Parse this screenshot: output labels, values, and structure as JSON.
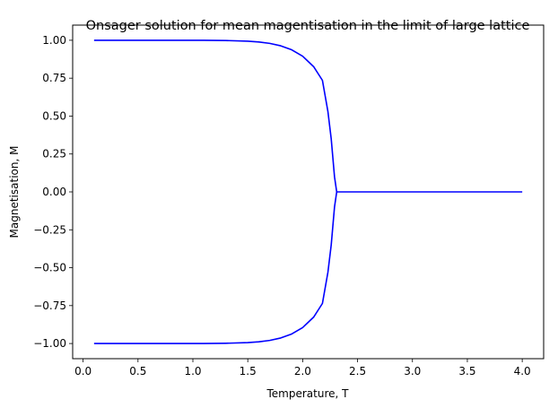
{
  "chart_data": {
    "type": "line",
    "title": "Onsager solution for mean magentisation in the limit of large lattice",
    "xlabel": "Temperature, T",
    "ylabel": "Magnetisation, M",
    "xlim": [
      -0.095,
      4.195
    ],
    "ylim": [
      -1.1,
      1.1
    ],
    "x_ticks": [
      "0.0",
      "0.5",
      "1.0",
      "1.5",
      "2.0",
      "2.5",
      "3.0",
      "3.5",
      "4.0"
    ],
    "x_tick_values": [
      0.0,
      0.5,
      1.0,
      1.5,
      2.0,
      2.5,
      3.0,
      3.5,
      4.0
    ],
    "y_ticks": [
      "1.00",
      "0.75",
      "0.50",
      "0.25",
      "0.00",
      "−0.25",
      "−0.50",
      "−0.75",
      "−1.00"
    ],
    "y_tick_values": [
      1.0,
      0.75,
      0.5,
      0.25,
      0.0,
      -0.25,
      -0.5,
      -0.75,
      -1.0
    ],
    "grid": false,
    "line_color": "#0000ff",
    "series": [
      {
        "x": [
          0.1,
          0.5,
          0.9,
          1.1,
          1.3,
          1.5,
          1.6,
          1.7,
          1.8,
          1.9,
          2.0,
          2.1,
          2.18,
          2.23,
          2.26,
          2.29,
          2.31,
          4.0
        ],
        "y": [
          1.0,
          1.0,
          0.9999,
          0.9996,
          0.9984,
          0.9941,
          0.9889,
          0.9795,
          0.9635,
          0.9373,
          0.8951,
          0.8258,
          0.7356,
          0.53,
          0.35,
          0.1,
          0.0,
          0.0
        ]
      },
      {
        "x": [
          0.1,
          0.5,
          0.9,
          1.1,
          1.3,
          1.5,
          1.6,
          1.7,
          1.8,
          1.9,
          2.0,
          2.1,
          2.18,
          2.23,
          2.26,
          2.29,
          2.31
        ],
        "y": [
          -1.0,
          -1.0,
          -0.9999,
          -0.9996,
          -0.9984,
          -0.9941,
          -0.9889,
          -0.9795,
          -0.9635,
          -0.9373,
          -0.8951,
          -0.8258,
          -0.7356,
          -0.53,
          -0.35,
          -0.1,
          0.0
        ]
      }
    ]
  }
}
